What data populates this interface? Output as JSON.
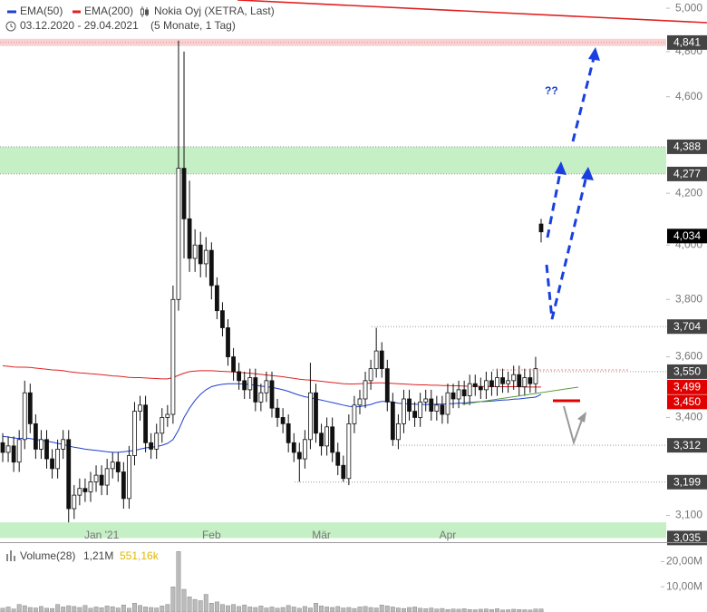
{
  "chart_data": {
    "type": "candlestick",
    "title": "Nokia Oyj (XETRA, Last)",
    "subtitle": "03.12.2020 - 29.04.2021",
    "period": "(5 Monate, 1 Tag)",
    "annotation": "??",
    "log_scale": true,
    "up_color": "#ffffff",
    "down_color": "#111111",
    "categories": [
      null,
      null,
      null,
      null,
      null,
      null,
      null,
      null,
      null,
      null,
      null,
      null,
      null,
      null,
      null,
      null,
      null,
      null,
      "Jan '21",
      null,
      null,
      null,
      null,
      null,
      null,
      null,
      null,
      null,
      null,
      null,
      null,
      null,
      null,
      null,
      null,
      null,
      null,
      null,
      "Feb",
      null,
      null,
      null,
      null,
      null,
      null,
      null,
      null,
      null,
      null,
      null,
      null,
      null,
      null,
      null,
      null,
      null,
      null,
      null,
      "Mär",
      null,
      null,
      null,
      null,
      null,
      null,
      null,
      null,
      null,
      null,
      null,
      null,
      null,
      null,
      null,
      null,
      null,
      null,
      null,
      null,
      null,
      null,
      "Apr",
      null,
      null,
      null,
      null,
      null,
      null,
      null,
      null,
      null,
      null,
      null,
      null,
      null,
      null,
      null,
      null,
      null
    ],
    "open": [
      3320,
      3290,
      3310,
      3260,
      3330,
      3480,
      3380,
      3300,
      3330,
      3270,
      3240,
      3300,
      3330,
      3120,
      3160,
      3180,
      3170,
      3200,
      3220,
      3190,
      3240,
      3260,
      3230,
      3150,
      3280,
      3420,
      3440,
      3320,
      3300,
      3350,
      3400,
      3410,
      3800,
      4300,
      4100,
      3950,
      4000,
      3930,
      3980,
      3850,
      3760,
      3700,
      3600,
      3550,
      3520,
      3490,
      3530,
      3450,
      3480,
      3520,
      3430,
      3400,
      3380,
      3320,
      3290,
      3270,
      3330,
      3480,
      3350,
      3310,
      3370,
      3290,
      3250,
      3210,
      3380,
      3440,
      3460,
      3520,
      3560,
      3620,
      3560,
      3450,
      3330,
      3380,
      3460,
      3420,
      3400,
      3450,
      3460,
      3420,
      3440,
      3410,
      3480,
      3460,
      3490,
      3470,
      3510,
      3500,
      3490,
      3520,
      3500,
      3530,
      3510,
      3520,
      3540,
      3500,
      3530,
      3510,
      4080
    ],
    "high": [
      3350,
      3340,
      3340,
      3360,
      3520,
      3510,
      3410,
      3360,
      3360,
      3300,
      3330,
      3360,
      3360,
      3190,
      3210,
      3210,
      3230,
      3250,
      3250,
      3270,
      3290,
      3290,
      3260,
      3310,
      3450,
      3470,
      3470,
      3350,
      3380,
      3430,
      3440,
      3850,
      4850,
      4800,
      4250,
      4060,
      4050,
      4030,
      4010,
      3880,
      3790,
      3730,
      3630,
      3580,
      3550,
      3560,
      3560,
      3510,
      3550,
      3550,
      3460,
      3430,
      3410,
      3350,
      3320,
      3360,
      3580,
      3510,
      3380,
      3400,
      3400,
      3320,
      3280,
      3410,
      3470,
      3490,
      3550,
      3590,
      3700,
      3650,
      3590,
      3480,
      3410,
      3490,
      3490,
      3450,
      3480,
      3490,
      3490,
      3470,
      3470,
      3510,
      3510,
      3520,
      3520,
      3540,
      3540,
      3530,
      3550,
      3550,
      3560,
      3560,
      3550,
      3570,
      3570,
      3560,
      3560,
      3600,
      4100
    ],
    "low": [
      3260,
      3260,
      3230,
      3230,
      3300,
      3350,
      3270,
      3270,
      3240,
      3210,
      3210,
      3270,
      3080,
      3090,
      3130,
      3140,
      3140,
      3170,
      3160,
      3160,
      3210,
      3200,
      3120,
      3120,
      3250,
      3390,
      3290,
      3270,
      3270,
      3320,
      3370,
      3380,
      3760,
      3950,
      3900,
      3900,
      3880,
      3880,
      3800,
      3730,
      3670,
      3570,
      3520,
      3490,
      3460,
      3460,
      3420,
      3420,
      3450,
      3400,
      3370,
      3350,
      3290,
      3260,
      3200,
      3240,
      3300,
      3320,
      3280,
      3280,
      3260,
      3220,
      3200,
      3190,
      3350,
      3410,
      3430,
      3490,
      3530,
      3530,
      3420,
      3310,
      3300,
      3350,
      3390,
      3370,
      3370,
      3420,
      3390,
      3390,
      3380,
      3380,
      3430,
      3430,
      3440,
      3440,
      3470,
      3460,
      3460,
      3470,
      3470,
      3480,
      3480,
      3490,
      3470,
      3470,
      3480,
      3480,
      4010
    ],
    "close": [
      3290,
      3310,
      3260,
      3330,
      3480,
      3380,
      3300,
      3330,
      3270,
      3240,
      3300,
      3330,
      3120,
      3160,
      3180,
      3170,
      3200,
      3220,
      3190,
      3240,
      3260,
      3230,
      3150,
      3280,
      3420,
      3440,
      3320,
      3300,
      3350,
      3400,
      3410,
      3800,
      4300,
      4100,
      3950,
      4000,
      3930,
      3980,
      3850,
      3760,
      3700,
      3600,
      3550,
      3520,
      3490,
      3530,
      3450,
      3480,
      3520,
      3430,
      3400,
      3380,
      3320,
      3290,
      3270,
      3330,
      3480,
      3350,
      3310,
      3370,
      3290,
      3250,
      3210,
      3380,
      3440,
      3460,
      3520,
      3560,
      3620,
      3560,
      3450,
      3330,
      3380,
      3460,
      3420,
      3400,
      3450,
      3460,
      3420,
      3440,
      3410,
      3480,
      3460,
      3490,
      3470,
      3510,
      3500,
      3490,
      3520,
      3500,
      3530,
      3510,
      3520,
      3540,
      3500,
      3530,
      3510,
      3560,
      4050
    ],
    "ylim": [
      3023,
      5039
    ],
    "yticks": [
      {
        "value": 3100,
        "label": "3,100"
      },
      {
        "value": 3400,
        "label": "3,400"
      },
      {
        "value": 3600,
        "label": "3,600"
      },
      {
        "value": 3800,
        "label": "3,800"
      },
      {
        "value": 4000,
        "label": "4,000"
      },
      {
        "value": 4200,
        "label": "4,200"
      },
      {
        "value": 4600,
        "label": "4,600"
      },
      {
        "value": 4800,
        "label": "4,800"
      },
      {
        "value": 5000,
        "label": "5,000"
      }
    ],
    "series": [
      {
        "name": "EMA(50)",
        "color": "#1f3fd0",
        "values": [
          3340,
          3338,
          3335,
          3333,
          3335,
          3333,
          3330,
          3328,
          3325,
          3322,
          3318,
          3315,
          3310,
          3306,
          3303,
          3300,
          3298,
          3296,
          3294,
          3292,
          3290,
          3290,
          3292,
          3294,
          3296,
          3300,
          3304,
          3306,
          3308,
          3312,
          3318,
          3330,
          3360,
          3400,
          3430,
          3455,
          3475,
          3490,
          3500,
          3505,
          3508,
          3510,
          3510,
          3510,
          3509,
          3507,
          3505,
          3502,
          3500,
          3498,
          3494,
          3490,
          3485,
          3478,
          3472,
          3467,
          3464,
          3460,
          3456,
          3452,
          3448,
          3444,
          3440,
          3436,
          3434,
          3435,
          3438,
          3442,
          3448,
          3452,
          3452,
          3450,
          3446,
          3445,
          3444,
          3443,
          3442,
          3442,
          3442,
          3443,
          3443,
          3444,
          3445,
          3446,
          3447,
          3448,
          3450,
          3451,
          3452,
          3453,
          3455,
          3456,
          3457,
          3459,
          3460,
          3462,
          3464,
          3466,
          3475
        ]
      },
      {
        "name": "EMA(200)",
        "color": "#e02020",
        "values": [
          3570,
          3568,
          3566,
          3565,
          3565,
          3564,
          3562,
          3560,
          3558,
          3556,
          3555,
          3553,
          3550,
          3548,
          3546,
          3545,
          3543,
          3542,
          3540,
          3538,
          3536,
          3535,
          3533,
          3531,
          3530,
          3530,
          3529,
          3528,
          3527,
          3526,
          3526,
          3530,
          3538,
          3545,
          3550,
          3552,
          3553,
          3553,
          3553,
          3552,
          3551,
          3550,
          3549,
          3548,
          3546,
          3545,
          3543,
          3541,
          3539,
          3537,
          3535,
          3533,
          3530,
          3528,
          3525,
          3523,
          3522,
          3520,
          3518,
          3516,
          3514,
          3512,
          3510,
          3509,
          3509,
          3510,
          3511,
          3512,
          3513,
          3513,
          3512,
          3511,
          3510,
          3509,
          3508,
          3507,
          3506,
          3506,
          3505,
          3505,
          3504,
          3504,
          3503,
          3503,
          3502,
          3502,
          3502,
          3501,
          3501,
          3501,
          3500,
          3500,
          3500,
          3500,
          3500,
          3499,
          3499,
          3499,
          3499
        ]
      }
    ],
    "levels": [
      {
        "value": 4841,
        "label": "4,841",
        "color": "#444444"
      },
      {
        "value": 4388,
        "label": "4,388",
        "color": "#444444"
      },
      {
        "value": 4277,
        "label": "4,277",
        "color": "#444444"
      },
      {
        "value": 4034,
        "label": "4,034",
        "color": "#000000"
      },
      {
        "value": 3704,
        "label": "3,704",
        "color": "#444444"
      },
      {
        "value": 3550,
        "label": "3,550",
        "color": "#444444"
      },
      {
        "value": 3499,
        "label": "3,499",
        "color": "#e00000"
      },
      {
        "value": 3450,
        "label": "3,450",
        "color": "#e00000"
      },
      {
        "value": 3312,
        "label": "3,312",
        "color": "#444444"
      },
      {
        "value": 3199,
        "label": "3,199",
        "color": "#444444"
      },
      {
        "value": 3035,
        "label": "3,035",
        "color": "#444444"
      }
    ],
    "zones": [
      {
        "from": 4277,
        "to": 4388,
        "color": "#c5efc5"
      },
      {
        "from": 3035,
        "to": 3080,
        "color": "#c5efc5"
      },
      {
        "from": 4825,
        "to": 4858,
        "color": "#f9d3d3"
      }
    ],
    "volume": {
      "name": "Volume(28)",
      "last_label": "1,21M",
      "average_label": "551,16k",
      "average_color": "#e0b800",
      "color": "#bbbbbb",
      "ylim": [
        0,
        27
      ],
      "yticks": [
        {
          "value": 10,
          "label": "10,00M"
        },
        {
          "value": 20,
          "label": "20,00M"
        }
      ],
      "values": [
        1.5,
        2,
        1.2,
        3,
        2.5,
        1.8,
        1.6,
        2.2,
        1.5,
        1.4,
        3,
        2,
        2.5,
        2.2,
        1.8,
        2.6,
        1.5,
        2,
        1.7,
        2.4,
        2.1,
        1.6,
        2.8,
        1.5,
        3.5,
        2.6,
        2,
        1.8,
        1.6,
        2.4,
        3,
        10,
        24,
        9,
        6,
        5,
        4.5,
        7,
        3.5,
        4,
        3,
        2.5,
        3,
        2.2,
        2.8,
        2,
        1.8,
        2.4,
        1.6,
        2,
        1.5,
        1.8,
        2.6,
        2,
        1.5,
        2.2,
        1.6,
        3.5,
        2.4,
        2,
        1.8,
        2.2,
        1.6,
        1.8,
        1.4,
        2,
        2.2,
        1.8,
        1.6,
        2.8,
        2.4,
        2,
        1.6,
        1.4,
        1.8,
        2,
        1.5,
        1.3,
        1.6,
        1.2,
        1.4,
        1,
        1.2,
        1.1,
        1.3,
        1,
        0.9,
        1.1,
        1.2,
        1,
        1.3,
        0.8,
        0.9,
        1.1,
        1,
        0.9,
        0.8,
        1.2,
        1.21
      ]
    }
  }
}
